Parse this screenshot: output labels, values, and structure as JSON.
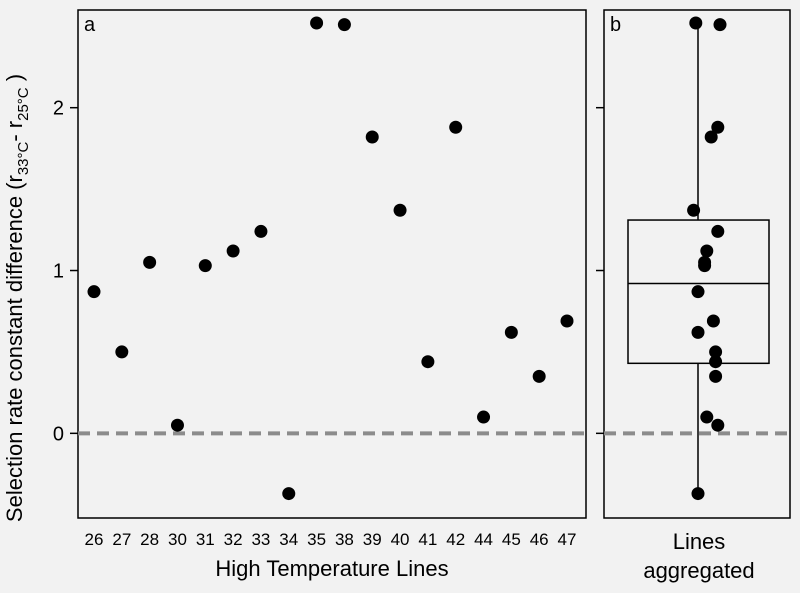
{
  "colors": {
    "background": "#f2f2f2",
    "point": "#000000",
    "reference_line": "#8c8c8c",
    "axis": "#000000"
  },
  "ylabel": {
    "prefix": "Selection rate constant difference (r",
    "sub1": "33°C",
    "mid": "- r",
    "sub2": "25°C",
    "suffix": " )"
  },
  "chart_data": [
    {
      "type": "scatter",
      "panel_label": "a",
      "xlabel": "High Temperature Lines",
      "categories": [
        "26",
        "27",
        "28",
        "30",
        "31",
        "32",
        "33",
        "34",
        "35",
        "38",
        "39",
        "40",
        "41",
        "42",
        "44",
        "45",
        "46",
        "47"
      ],
      "values": [
        0.87,
        0.5,
        1.05,
        0.05,
        1.03,
        1.12,
        1.24,
        -0.37,
        2.52,
        2.51,
        1.82,
        1.37,
        0.44,
        1.88,
        0.1,
        0.62,
        0.35,
        0.69
      ],
      "ylim": [
        -0.52,
        2.6
      ],
      "yticks": [
        0,
        1,
        2
      ],
      "reference_line": {
        "y": 0,
        "style": "dashed"
      }
    },
    {
      "type": "box",
      "panel_label": "b",
      "xlabel_lines": [
        "Lines",
        "aggregated"
      ],
      "values": [
        0.87,
        0.5,
        1.05,
        0.05,
        1.03,
        1.12,
        1.24,
        -0.37,
        2.52,
        2.51,
        1.82,
        1.37,
        0.44,
        1.88,
        0.1,
        0.62,
        0.35,
        0.69
      ],
      "box": {
        "q1": 0.43,
        "median": 0.92,
        "q3": 1.31,
        "whisker_low": -0.37,
        "whisker_high": 2.52
      },
      "jitter": [
        0.0,
        0.8,
        0.3,
        0.9,
        0.3,
        0.4,
        0.9,
        0.0,
        -0.1,
        1.0,
        0.6,
        -0.2,
        0.8,
        0.9,
        0.4,
        0.0,
        0.8,
        0.7
      ],
      "ylim": [
        -0.52,
        2.6
      ],
      "reference_line": {
        "y": 0,
        "style": "dashed"
      }
    }
  ]
}
